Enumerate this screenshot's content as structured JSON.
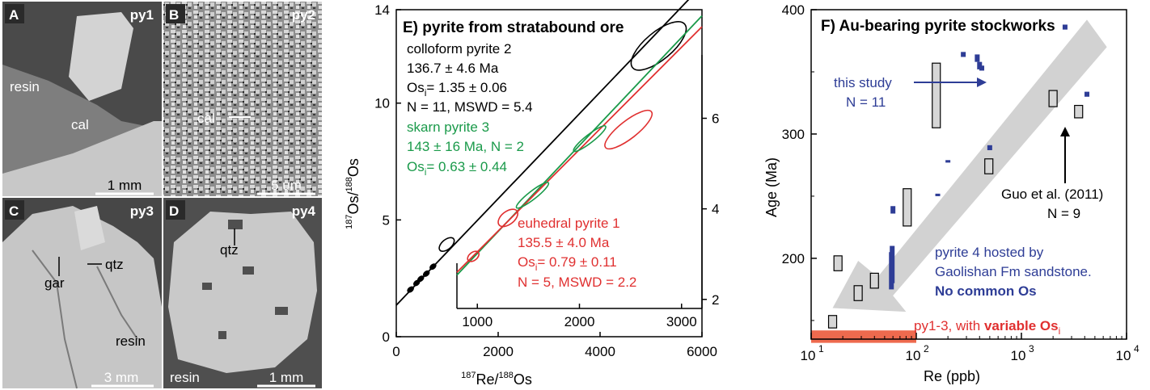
{
  "micrographs": [
    {
      "letter": "A",
      "tag": "py1",
      "scale": "1 mm",
      "labels": [
        "resin",
        "cal"
      ]
    },
    {
      "letter": "B",
      "tag": "py2",
      "scale": "5 um",
      "labels": [
        "cal"
      ]
    },
    {
      "letter": "C",
      "tag": "py3",
      "scale": "3 mm",
      "labels": [
        "gar",
        "qtz",
        "resin"
      ]
    },
    {
      "letter": "D",
      "tag": "py4",
      "scale": "1 mm",
      "labels": [
        "qtz",
        "resin"
      ]
    }
  ],
  "panel_e": {
    "title": "E) pyrite from stratabound ore",
    "xlabel_main": "Re/",
    "xlabel_sup1": "187",
    "xlabel_sup2": "188",
    "xlabel_tail": "Os",
    "ylabel_main": "Os/",
    "ylabel_sup1": "187",
    "ylabel_sup2": "188",
    "ylabel_tail": "Os",
    "annotations": {
      "colloform": [
        "colloform pyrite 2",
        "136.7 ± 4.6 Ma",
        "Os",
        "= 1.35 ± 0.06",
        "N = 11, MSWD = 5.4"
      ],
      "skarn": [
        "skarn pyrite 3",
        "143 ± 16 Ma, N = 2",
        "Os",
        "= 0.63 ± 0.44"
      ],
      "euhedral": [
        "euhedral pyrite 1",
        "135.5 ± 4.0 Ma",
        "Os",
        "= 0.79 ± 0.11",
        "N = 5, MSWD = 2.2"
      ],
      "sub_i": "i"
    }
  },
  "panel_f": {
    "title": "F) Au-bearing pyrite stockworks",
    "xlabel": "Re (ppb)",
    "ylabel": "Age (Ma)",
    "this_study": [
      "this study",
      "N = 11"
    ],
    "guo": [
      "Guo et al. (2011)",
      "N = 9"
    ],
    "pyrite4": [
      "pyrite 4 hosted by",
      "Gaolishan Fm sandstone.",
      "No common Os"
    ],
    "py13": [
      "py1-3, with ",
      "variable Os",
      "i"
    ]
  },
  "chart_data": [
    {
      "type": "scatter",
      "title": "E) pyrite from stratabound ore",
      "xlabel": "187Re/188Os",
      "ylabel": "187Os/188Os",
      "xlim": [
        0,
        6000
      ],
      "ylim": [
        0,
        14
      ],
      "xticks": [
        "0",
        "2000",
        "4000",
        "6000"
      ],
      "yticks": [
        "0",
        "5",
        "10",
        "14"
      ],
      "series": [
        {
          "name": "colloform pyrite 2",
          "color": "#000000",
          "x": [
            280,
            400,
            480,
            590,
            720,
            990,
            5150
          ],
          "y": [
            2.02,
            2.3,
            2.48,
            2.7,
            3.0,
            3.95,
            12.45
          ],
          "isochron": {
            "age_ma": 136.7,
            "os_i": 1.35
          }
        },
        {
          "name": "skarn pyrite 3",
          "color": "#1a9a4a",
          "isochron": {
            "age_ma": 143,
            "os_i": 0.63
          }
        },
        {
          "name": "euhedral pyrite 1",
          "color": "#e03030",
          "isochron": {
            "age_ma": 135.5,
            "os_i": 0.79
          }
        }
      ],
      "inset": {
        "xlim": [
          800,
          3200
        ],
        "ylim": [
          1.8,
          7.4
        ],
        "xticks": [
          "1000",
          "2000",
          "3000"
        ],
        "yticks": [
          "2",
          "4",
          "6"
        ],
        "euhedral_points": {
          "x": [
            960,
            1300,
            2480
          ],
          "y": [
            2.95,
            3.8,
            5.75
          ]
        },
        "skarn_points": {
          "x": [
            1540,
            2100
          ],
          "y": [
            4.3,
            5.55
          ]
        }
      }
    },
    {
      "type": "scatter",
      "title": "F) Au-bearing pyrite stockworks",
      "xlabel": "Re (ppb)",
      "ylabel": "Age (Ma)",
      "xscale": "log",
      "xlim": [
        10,
        10000
      ],
      "ylim": [
        135,
        400
      ],
      "yticks": [
        "200",
        "300",
        "400"
      ],
      "series": [
        {
          "name": "Guo et al. (2011)",
          "color": "#000000",
          "x": [
            16,
            18,
            28,
            40,
            82,
            155,
            490,
            2000,
            3500
          ],
          "y_min": [
            144,
            190,
            166,
            176,
            226,
            305,
            268,
            322,
            313
          ],
          "y_max": [
            154,
            202,
            178,
            188,
            256,
            357,
            280,
            335,
            323
          ]
        },
        {
          "name": "this study",
          "color": "#2e3d96",
          "x": [
            58,
            59,
            60,
            160,
            200,
            280,
            380,
            400,
            420,
            500,
            2600,
            4200
          ],
          "y_min": [
            175,
            180,
            236,
            250,
            277,
            362,
            358,
            352,
            351,
            287,
            384,
            330
          ],
          "y_max": [
            205,
            210,
            242,
            252,
            279,
            366,
            364,
            358,
            355,
            291,
            388,
            334
          ]
        }
      ]
    }
  ]
}
